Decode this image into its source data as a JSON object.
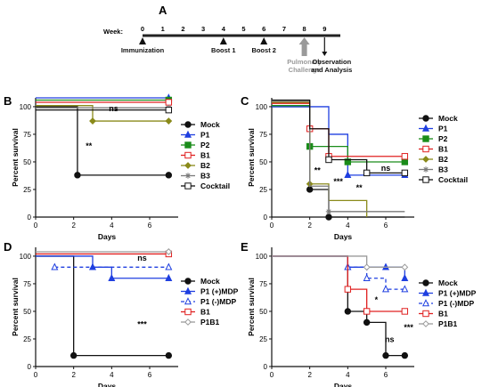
{
  "chart_data": [
    {
      "panel": "A",
      "type": "timeline",
      "axis_label": "Week:",
      "weeks": [
        0,
        1,
        2,
        3,
        4,
        5,
        6,
        7,
        8,
        9
      ],
      "events": [
        {
          "week": 0,
          "label": "Immunization",
          "color": "#111111"
        },
        {
          "week": 4,
          "label": "Boost 1",
          "color": "#111111"
        },
        {
          "week": 6,
          "label": "Boost 2",
          "color": "#111111"
        },
        {
          "week": 8,
          "label": "Pulmonary Challenge",
          "color": "#9a9a9a"
        },
        {
          "week": 9,
          "label": "Observation and Analysis",
          "color": "#111111"
        }
      ]
    },
    {
      "panel": "B",
      "type": "line",
      "xlabel": "Days",
      "ylabel": "Percent survival",
      "xlim": [
        0,
        7.5
      ],
      "ylim": [
        0,
        108
      ],
      "xticks": [
        0,
        2,
        4,
        6
      ],
      "yticks": [
        0,
        25,
        50,
        75,
        100
      ],
      "legend_position": "right",
      "series": [
        {
          "name": "Mock",
          "color": "#111111",
          "marker": "circle-filled",
          "dash": "",
          "x": [
            0,
            2.2,
            7
          ],
          "y": [
            100,
            38,
            38
          ],
          "marker_x": [
            2.2,
            7
          ]
        },
        {
          "name": "P1",
          "color": "#1f3fe0",
          "marker": "triangle-filled",
          "dash": "",
          "x": [
            0,
            7
          ],
          "y": [
            108,
            108
          ],
          "marker_x": [
            7
          ]
        },
        {
          "name": "P2",
          "color": "#1a8c1a",
          "marker": "square-filled",
          "dash": "",
          "x": [
            0,
            7
          ],
          "y": [
            106,
            106
          ],
          "marker_x": [
            7
          ]
        },
        {
          "name": "B1",
          "color": "#e02020",
          "marker": "square-open",
          "dash": "",
          "x": [
            0,
            7
          ],
          "y": [
            104,
            104
          ],
          "marker_x": [
            7
          ]
        },
        {
          "name": "B2",
          "color": "#8a8a1a",
          "marker": "diamond-filled",
          "dash": "",
          "x": [
            0,
            3,
            7
          ],
          "y": [
            101,
            87,
            87
          ],
          "marker_x": [
            3,
            7
          ]
        },
        {
          "name": "B3",
          "color": "#7a7a7a",
          "marker": "star",
          "dash": "",
          "x": [
            0,
            7
          ],
          "y": [
            99,
            99
          ],
          "marker_x": [
            7
          ]
        },
        {
          "name": "Cocktail",
          "color": "#111111",
          "marker": "square-open",
          "dash": "",
          "x": [
            0,
            7
          ],
          "y": [
            97,
            97
          ],
          "marker_x": [
            7
          ]
        }
      ],
      "annotations": [
        {
          "text": "**",
          "x": 2.8,
          "y": 62
        },
        {
          "text": "ns",
          "x": 4.1,
          "y": 96
        }
      ]
    },
    {
      "panel": "C",
      "type": "line",
      "xlabel": "Days",
      "ylabel": "Percent survival",
      "xlim": [
        0,
        7.5
      ],
      "ylim": [
        0,
        108
      ],
      "xticks": [
        0,
        2,
        4,
        6
      ],
      "yticks": [
        0,
        25,
        50,
        75,
        100
      ],
      "legend_position": "right",
      "series": [
        {
          "name": "Mock",
          "color": "#111111",
          "marker": "circle-filled",
          "dash": "",
          "x": [
            0,
            2,
            3,
            7
          ],
          "y": [
            100,
            25,
            0,
            0
          ],
          "marker_x": [
            2,
            3
          ]
        },
        {
          "name": "P1",
          "color": "#1f3fe0",
          "marker": "triangle-filled",
          "dash": "",
          "x": [
            0,
            3,
            4,
            7
          ],
          "y": [
            100,
            75,
            38,
            38
          ],
          "marker_x": [
            4,
            7
          ]
        },
        {
          "name": "P2",
          "color": "#1a8c1a",
          "marker": "square-filled",
          "dash": "",
          "x": [
            0,
            2,
            4,
            7
          ],
          "y": [
            101,
            64,
            50,
            50
          ],
          "marker_x": [
            2,
            4,
            7
          ]
        },
        {
          "name": "B1",
          "color": "#e02020",
          "marker": "square-open",
          "dash": "",
          "x": [
            0,
            2,
            3,
            7
          ],
          "y": [
            103,
            80,
            55,
            55
          ],
          "marker_x": [
            2,
            3,
            7
          ]
        },
        {
          "name": "B2",
          "color": "#8a8a1a",
          "marker": "diamond-filled",
          "dash": "",
          "x": [
            0,
            2,
            3,
            5
          ],
          "y": [
            104,
            30,
            15,
            0
          ],
          "marker_x": [
            2
          ]
        },
        {
          "name": "B3",
          "color": "#7a7a7a",
          "marker": "star",
          "dash": "",
          "x": [
            0,
            2,
            3,
            7
          ],
          "y": [
            105,
            28,
            5,
            5
          ],
          "marker_x": [
            3
          ]
        },
        {
          "name": "Cocktail",
          "color": "#111111",
          "marker": "square-open",
          "dash": "",
          "x": [
            0,
            2,
            3,
            5,
            7
          ],
          "y": [
            106,
            80,
            52,
            40,
            40
          ],
          "marker_x": [
            3,
            5,
            7
          ]
        }
      ],
      "annotations": [
        {
          "text": "**",
          "x": 2.4,
          "y": 40
        },
        {
          "text": "***",
          "x": 3.5,
          "y": 30
        },
        {
          "text": "**",
          "x": 4.6,
          "y": 24
        },
        {
          "text": "ns",
          "x": 6.0,
          "y": 42
        }
      ]
    },
    {
      "panel": "D",
      "type": "line",
      "xlabel": "Days",
      "ylabel": "Percent survival",
      "xlim": [
        0,
        7.5
      ],
      "ylim": [
        0,
        108
      ],
      "xticks": [
        0,
        2,
        4,
        6
      ],
      "yticks": [
        0,
        25,
        50,
        75,
        100
      ],
      "legend_position": "right",
      "series": [
        {
          "name": "Mock",
          "color": "#111111",
          "marker": "circle-filled",
          "dash": "",
          "x": [
            0,
            2,
            7
          ],
          "y": [
            100,
            10,
            10
          ],
          "marker_x": [
            2,
            7
          ]
        },
        {
          "name": "P1 (+)MDP",
          "color": "#1f3fe0",
          "marker": "triangle-filled",
          "dash": "",
          "x": [
            0,
            3,
            4,
            7
          ],
          "y": [
            100,
            90,
            80,
            80
          ],
          "marker_x": [
            3,
            4,
            7
          ]
        },
        {
          "name": "P1 (-)MDP",
          "color": "#1f3fe0",
          "marker": "triangle-open",
          "dash": "4,3",
          "x": [
            1,
            7
          ],
          "y": [
            90,
            90
          ],
          "marker_x": [
            1,
            7
          ]
        },
        {
          "name": "B1",
          "color": "#e02020",
          "marker": "square-open",
          "dash": "",
          "x": [
            0,
            7
          ],
          "y": [
            102,
            102
          ],
          "marker_x": [
            7
          ]
        },
        {
          "name": "P1B1",
          "color": "#9a9a9a",
          "marker": "diamond-open",
          "dash": "",
          "x": [
            0,
            7
          ],
          "y": [
            104,
            104
          ],
          "marker_x": [
            7
          ]
        }
      ],
      "annotations": [
        {
          "text": "ns",
          "x": 5.6,
          "y": 96
        },
        {
          "text": "***",
          "x": 5.6,
          "y": 36
        }
      ]
    },
    {
      "panel": "E",
      "type": "line",
      "xlabel": "Days",
      "ylabel": "Percent survival",
      "xlim": [
        0,
        7.5
      ],
      "ylim": [
        0,
        108
      ],
      "xticks": [
        0,
        2,
        4,
        6
      ],
      "yticks": [
        0,
        25,
        50,
        75,
        100
      ],
      "legend_position": "right",
      "series": [
        {
          "name": "Mock",
          "color": "#111111",
          "marker": "circle-filled",
          "dash": "",
          "x": [
            0,
            4,
            5,
            6,
            7
          ],
          "y": [
            100,
            50,
            40,
            10,
            10
          ],
          "marker_x": [
            4,
            5,
            6,
            7
          ]
        },
        {
          "name": "P1 (+)MDP",
          "color": "#1f3fe0",
          "marker": "triangle-filled",
          "dash": "",
          "x": [
            0,
            4,
            7
          ],
          "y": [
            100,
            90,
            80
          ],
          "marker_x": [
            4,
            6,
            7
          ]
        },
        {
          "name": "P1 (-)MDP",
          "color": "#1f3fe0",
          "marker": "triangle-open",
          "dash": "4,3",
          "x": [
            4,
            5,
            6,
            7
          ],
          "y": [
            90,
            80,
            70,
            70
          ],
          "marker_x": [
            4,
            5,
            6,
            7
          ]
        },
        {
          "name": "B1",
          "color": "#e02020",
          "marker": "square-open",
          "dash": "",
          "x": [
            0,
            4,
            5,
            7
          ],
          "y": [
            100,
            70,
            50,
            50
          ],
          "marker_x": [
            4,
            5,
            7
          ]
        },
        {
          "name": "P1B1",
          "color": "#9a9a9a",
          "marker": "diamond-open",
          "dash": "",
          "x": [
            0,
            5,
            7
          ],
          "y": [
            100,
            90,
            90
          ],
          "marker_x": [
            5,
            7
          ]
        }
      ],
      "annotations": [
        {
          "text": "*",
          "x": 5.5,
          "y": 58
        },
        {
          "text": "ns",
          "x": 6.2,
          "y": 22
        },
        {
          "text": "***",
          "x": 7.2,
          "y": 33
        }
      ]
    }
  ]
}
